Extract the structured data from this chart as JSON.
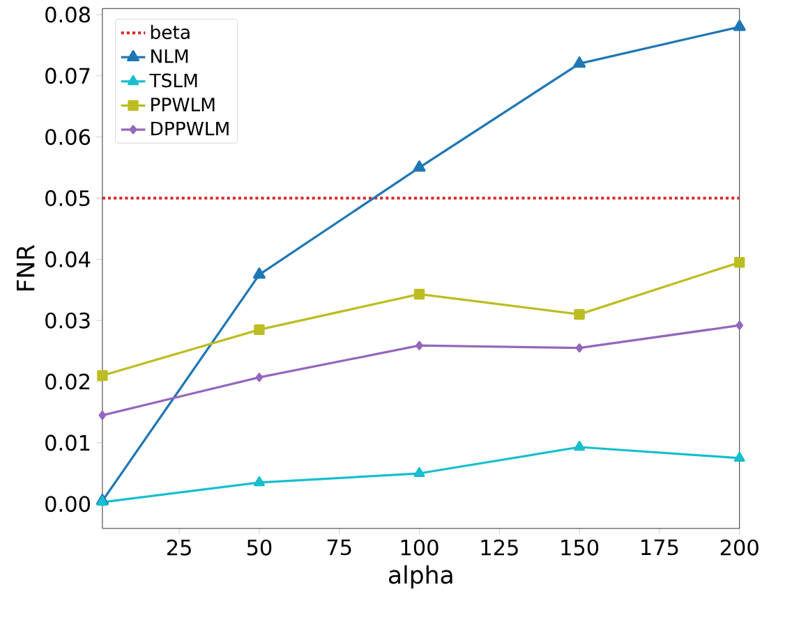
{
  "chart_data": {
    "type": "line",
    "xlabel": "alpha",
    "ylabel": "FNR",
    "x": [
      1,
      50,
      100,
      150,
      200
    ],
    "series": [
      {
        "name": "NLM",
        "color": "#1f77b4",
        "marker": "triangle",
        "values": [
          0.0005,
          0.0375,
          0.055,
          0.072,
          0.078
        ]
      },
      {
        "name": "TSLM",
        "color": "#17becf",
        "marker": "triangle",
        "values": [
          0.0003,
          0.0035,
          0.005,
          0.0093,
          0.0075
        ]
      },
      {
        "name": "PPWLM",
        "color": "#bcbd22",
        "marker": "square",
        "values": [
          0.021,
          0.0285,
          0.0343,
          0.031,
          0.0395
        ]
      },
      {
        "name": "DPPWLM",
        "color": "#9467bd",
        "marker": "diamond",
        "values": [
          0.0145,
          0.0207,
          0.0259,
          0.0255,
          0.0292
        ]
      }
    ],
    "ref_lines": [
      {
        "axis": "y",
        "value": 0.05,
        "label": "beta",
        "color": "#d62728",
        "line_style": "dotted"
      }
    ],
    "xlim": [
      1,
      200
    ],
    "xticks": [
      25,
      50,
      75,
      100,
      125,
      150,
      175,
      200
    ],
    "ylim": [
      -0.004,
      0.081
    ],
    "yticks": [
      {
        "value": 0,
        "label": "0.00"
      },
      {
        "value": 0.01,
        "label": "0.01"
      },
      {
        "value": 0.02,
        "label": "0.02"
      },
      {
        "value": 0.03,
        "label": "0.03"
      },
      {
        "value": 0.04,
        "label": "0.04"
      },
      {
        "value": 0.05,
        "label": "0.05"
      },
      {
        "value": 0.06,
        "label": "0.06"
      },
      {
        "value": 0.07,
        "label": "0.07"
      },
      {
        "value": 0.08,
        "label": "0.08"
      }
    ],
    "legend": "top left",
    "line_style": "solid"
  }
}
